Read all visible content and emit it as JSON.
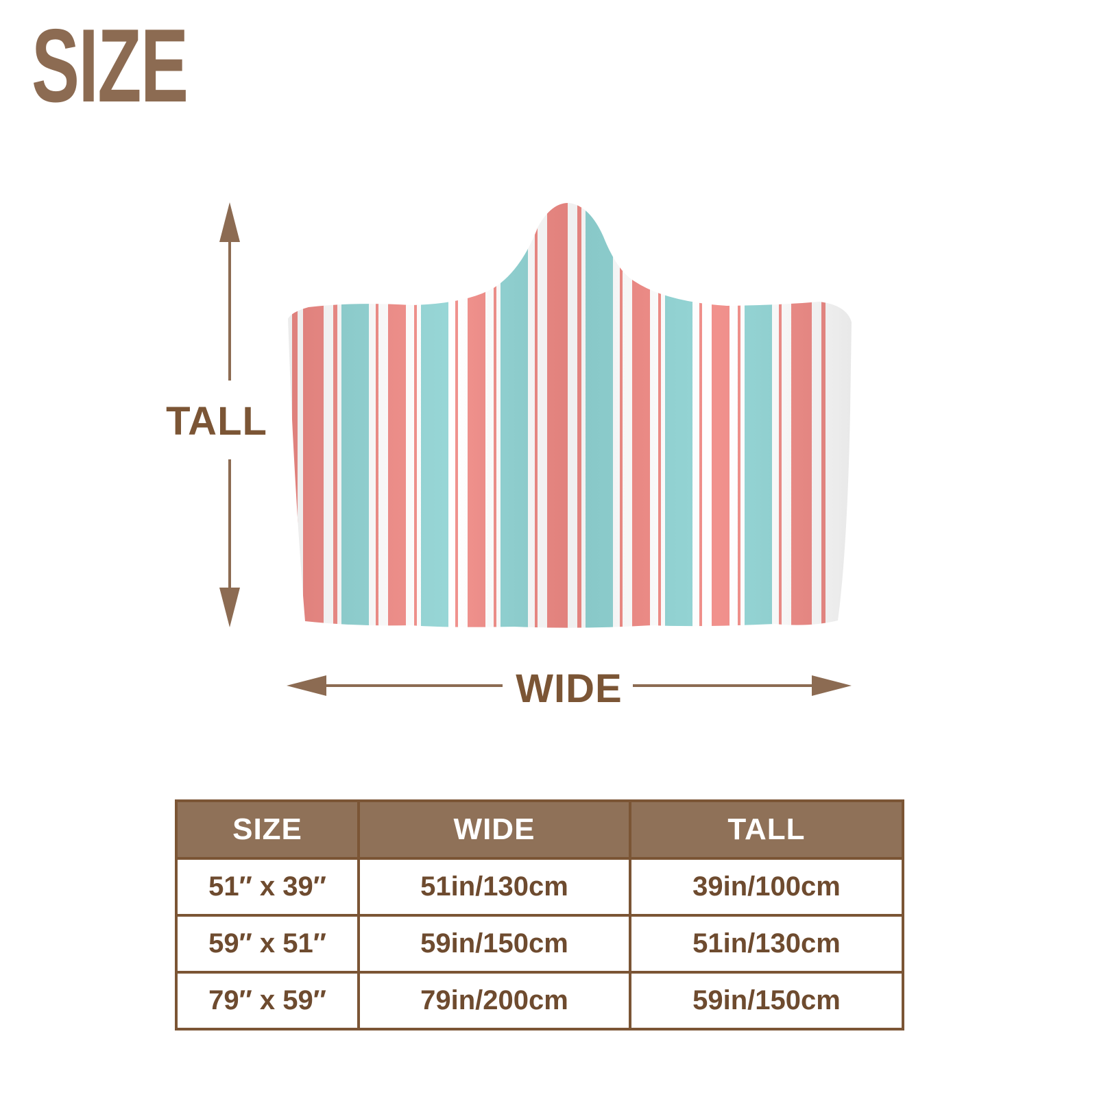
{
  "title": "SIZE",
  "diagram": {
    "tall_label": "TALL",
    "wide_label": "WIDE",
    "colors": {
      "accent": "#7b5535",
      "coral": "#f08a85",
      "aqua": "#8fd3d3",
      "white": "#ffffff"
    }
  },
  "size_table": {
    "headers": [
      "SIZE",
      "WIDE",
      "TALL"
    ],
    "rows": [
      [
        "51″ x 39″",
        "51in/130cm",
        "39in/100cm"
      ],
      [
        "59″ x 51″",
        "59in/150cm",
        "51in/130cm"
      ],
      [
        "79″ x 59″",
        "79in/200cm",
        "59in/150cm"
      ]
    ]
  }
}
